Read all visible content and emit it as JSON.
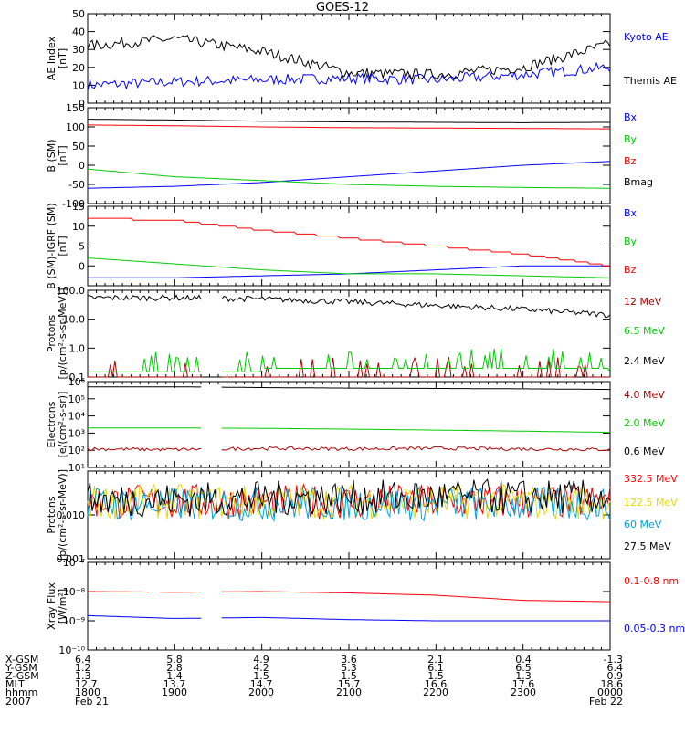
{
  "title": "GOES-12",
  "colors": {
    "black": "#000000",
    "blue": "#0000ff",
    "green": "#00cc00",
    "red": "#ff0000",
    "darkred": "#aa0000",
    "cyan": "#00a0e0",
    "yellow": "#e6d800"
  },
  "chart_data": [
    {
      "type": "line",
      "ylabel": "AE Index",
      "yunits": "[nT]",
      "ylim": [
        0,
        50
      ],
      "yscale": "linear",
      "ticks": [
        "0",
        "10",
        "20",
        "30",
        "40",
        "50"
      ],
      "x": [
        "1800",
        "1900",
        "2000",
        "2100",
        "2200",
        "2300",
        "0000"
      ],
      "series": [
        {
          "name": "Kyoto AE",
          "color": "#0000ff",
          "values": [
            10,
            12,
            13,
            14,
            13,
            16,
            20
          ]
        },
        {
          "name": "Themis AE",
          "color": "#000000",
          "values": [
            32,
            36,
            29,
            17,
            16,
            20,
            33
          ]
        }
      ]
    },
    {
      "type": "line",
      "ylabel": "B (SM)",
      "yunits": "[nT]",
      "ylim": [
        -100,
        150
      ],
      "yscale": "linear",
      "ticks": [
        "-100",
        "-50",
        "0",
        "50",
        "100",
        "150"
      ],
      "x": [
        "1800",
        "1900",
        "2000",
        "2100",
        "2200",
        "2300",
        "0000"
      ],
      "series": [
        {
          "name": "Bx",
          "color": "#0000ff",
          "values": [
            -60,
            -55,
            -45,
            -30,
            -15,
            0,
            10
          ]
        },
        {
          "name": "By",
          "color": "#00cc00",
          "values": [
            -10,
            -30,
            -40,
            -50,
            -55,
            -58,
            -60
          ]
        },
        {
          "name": "Bz",
          "color": "#ff0000",
          "values": [
            105,
            103,
            100,
            98,
            97,
            96,
            95
          ]
        },
        {
          "name": "Bmag",
          "color": "#000000",
          "values": [
            120,
            118,
            115,
            113,
            112,
            111,
            112
          ]
        }
      ]
    },
    {
      "type": "line",
      "ylabel": "B (SM)-IGRF (SM)",
      "yunits": "[nT]",
      "ylim": [
        -5,
        15
      ],
      "yscale": "linear",
      "ticks": [
        "0",
        "5",
        "10",
        "15"
      ],
      "x": [
        "1800",
        "1900",
        "2000",
        "2100",
        "2200",
        "2300",
        "0000"
      ],
      "series": [
        {
          "name": "Bx",
          "color": "#0000ff",
          "values": [
            -3,
            -3,
            -2.5,
            -2,
            -1,
            0,
            0
          ]
        },
        {
          "name": "By",
          "color": "#00cc00",
          "values": [
            2,
            0.5,
            -1,
            -2,
            -2,
            -2.5,
            -3
          ]
        },
        {
          "name": "Bz",
          "color": "#ff0000",
          "values": [
            12,
            11.5,
            9,
            7,
            5,
            3,
            0
          ]
        }
      ]
    },
    {
      "type": "line",
      "ylabel": "Protons",
      "yunits": "[p/(cm²-s-sr-MeV)]",
      "ylim": [
        0.1,
        100
      ],
      "yscale": "log",
      "ticks": [
        "0.1",
        "1.0",
        "10.0",
        "100.0"
      ],
      "x": [
        "1800",
        "1900",
        "2000",
        "2100",
        "2200",
        "2300",
        "0000"
      ],
      "series": [
        {
          "name": "12 MeV",
          "color": "#aa0000",
          "values": [
            0.1,
            0.1,
            0.1,
            0.1,
            0.1,
            0.1,
            0.1
          ]
        },
        {
          "name": "6.5 MeV",
          "color": "#00cc00",
          "values": [
            0.15,
            0.15,
            0.2,
            0.2,
            0.2,
            0.2,
            0.15
          ]
        },
        {
          "name": "2.4 MeV",
          "color": "#000000",
          "values": [
            55,
            55,
            50,
            40,
            30,
            22,
            14
          ]
        }
      ]
    },
    {
      "type": "line",
      "ylabel": "Electrons",
      "yunits": "[e/(cm²-s-sr)]",
      "ylim": [
        10,
        1000000
      ],
      "yscale": "log",
      "ticks": [
        "10¹",
        "10²",
        "10³",
        "10⁴",
        "10⁵",
        "10⁶"
      ],
      "x": [
        "1800",
        "1900",
        "2000",
        "2100",
        "2200",
        "2300",
        "0000"
      ],
      "series": [
        {
          "name": "4.0 MeV",
          "color": "#aa0000",
          "values": [
            120,
            110,
            130,
            120,
            130,
            120,
            110
          ]
        },
        {
          "name": "2.0 MeV",
          "color": "#00cc00",
          "values": [
            2000,
            2000,
            1900,
            1700,
            1500,
            1300,
            1100
          ]
        },
        {
          "name": "0.6 MeV",
          "color": "#000000",
          "values": [
            500000,
            500000,
            450000,
            420000,
            400000,
            380000,
            350000
          ]
        }
      ]
    },
    {
      "type": "line",
      "ylabel": "Protons",
      "yunits": "[p/(cm²-s-sr-MeV)]",
      "ylim": [
        0.001,
        0.1
      ],
      "yscale": "log",
      "ticks": [
        "0.001",
        "0.010"
      ],
      "x": [
        "1800",
        "1900",
        "2000",
        "2100",
        "2200",
        "2300",
        "0000"
      ],
      "series": [
        {
          "name": "332.5 MeV",
          "color": "#ff0000",
          "values": [
            0.02,
            0.02,
            0.02,
            0.02,
            0.02,
            0.02,
            0.02
          ]
        },
        {
          "name": "122.5 MeV",
          "color": "#e6d800",
          "values": [
            0.02,
            0.02,
            0.02,
            0.02,
            0.02,
            0.02,
            0.02
          ]
        },
        {
          "name": "60 MeV",
          "color": "#00a0e0",
          "values": [
            0.018,
            0.018,
            0.018,
            0.018,
            0.018,
            0.018,
            0.018
          ]
        },
        {
          "name": "27.5 MeV",
          "color": "#000000",
          "values": [
            0.022,
            0.022,
            0.024,
            0.025,
            0.026,
            0.026,
            0.025
          ]
        }
      ]
    },
    {
      "type": "line",
      "ylabel": "Xray Flux",
      "yunits": "[W/m²]",
      "ylim": [
        1e-10,
        1e-07
      ],
      "yscale": "log",
      "ticks": [
        "10⁻¹⁰",
        "10⁻⁹",
        "10⁻⁸",
        "10⁻⁷"
      ],
      "x": [
        "1800",
        "1900",
        "2000",
        "2100",
        "2200",
        "2300",
        "0000"
      ],
      "series": [
        {
          "name": "0.1-0.8 nm",
          "color": "#ff0000",
          "values": [
            1e-08,
            9.5e-09,
            1e-08,
            9e-09,
            7.5e-09,
            5e-09,
            4.5e-09
          ]
        },
        {
          "name": "0.05-0.3 nm",
          "color": "#0000ff",
          "values": [
            1.5e-09,
            1.2e-09,
            1.3e-09,
            1.1e-09,
            1e-09,
            1e-09,
            1e-09
          ]
        }
      ]
    }
  ],
  "footer": {
    "labels": [
      "X-GSM",
      "Y-GSM",
      "Z-GSM",
      "MLT",
      "hhmm",
      "2007"
    ],
    "columns": [
      [
        "6.4",
        "1.2",
        "1.3",
        "12.7",
        "1800",
        "Feb 21"
      ],
      [
        "5.8",
        "2.8",
        "1.4",
        "13.7",
        "1900",
        ""
      ],
      [
        "4.9",
        "4.2",
        "1.5",
        "14.7",
        "2000",
        ""
      ],
      [
        "3.6",
        "5.3",
        "1.5",
        "15.7",
        "2100",
        ""
      ],
      [
        "2.1",
        "6.1",
        "1.5",
        "16.6",
        "2200",
        ""
      ],
      [
        "0.4",
        "6.5",
        "1.3",
        "17.6",
        "2300",
        ""
      ],
      [
        "-1.3",
        "6.4",
        "0.9",
        "18.6",
        "0000",
        "Feb 22"
      ]
    ]
  }
}
